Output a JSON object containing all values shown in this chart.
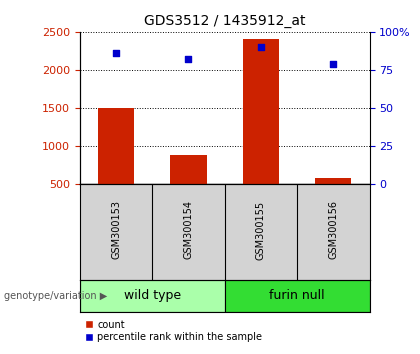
{
  "title": "GDS3512 / 1435912_at",
  "samples": [
    "GSM300153",
    "GSM300154",
    "GSM300155",
    "GSM300156"
  ],
  "counts": [
    1500,
    880,
    2400,
    580
  ],
  "baseline": 500,
  "percentiles": [
    86,
    82,
    90,
    79
  ],
  "groups": [
    {
      "label": "wild type",
      "indices": [
        0,
        1
      ],
      "color": "#AAFFAA"
    },
    {
      "label": "furin null",
      "indices": [
        2,
        3
      ],
      "color": "#33DD33"
    }
  ],
  "ylim_left": [
    500,
    2500
  ],
  "ylim_right": [
    0,
    100
  ],
  "left_ticks": [
    500,
    1000,
    1500,
    2000,
    2500
  ],
  "right_ticks": [
    0,
    25,
    50,
    75,
    100
  ],
  "bar_color": "#CC2200",
  "dot_color": "#0000CC",
  "left_tick_color": "#CC2200",
  "right_tick_color": "#0000CC",
  "bar_width": 0.5,
  "label_fontsize": 7,
  "title_fontsize": 10,
  "group_fontsize": 9,
  "legend_fontsize": 7
}
